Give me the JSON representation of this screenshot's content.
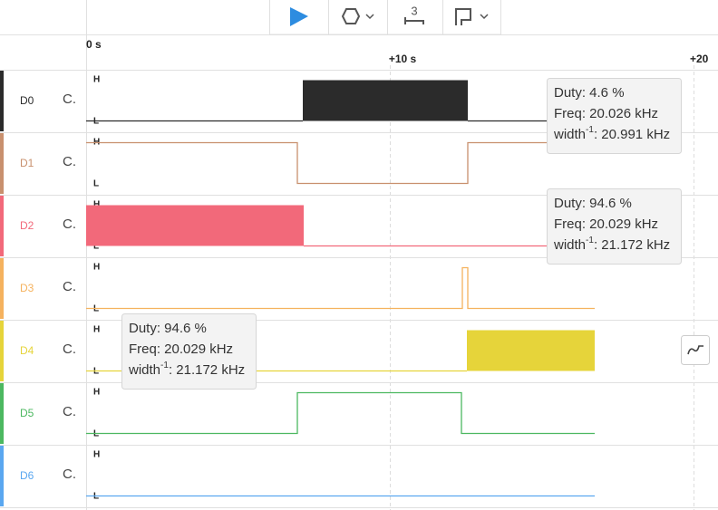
{
  "toolbar": {
    "count": "3"
  },
  "timeline": {
    "ticks": [
      "0 s",
      "+10 s",
      "+20"
    ]
  },
  "channels": [
    {
      "name": "D0",
      "label": "C.",
      "high": "H",
      "low": "L",
      "color": "#2b2b2b"
    },
    {
      "name": "D1",
      "label": "C.",
      "high": "H",
      "low": "L",
      "color": "#c8906e"
    },
    {
      "name": "D2",
      "label": "C.",
      "high": "H",
      "low": "L",
      "color": "#f2697a"
    },
    {
      "name": "D3",
      "label": "C.",
      "high": "H",
      "low": "L",
      "color": "#f5b25e"
    },
    {
      "name": "D4",
      "label": "C.",
      "high": "H",
      "low": "L",
      "color": "#e6d43a"
    },
    {
      "name": "D5",
      "label": "C.",
      "high": "H",
      "low": "L",
      "color": "#4cb860"
    },
    {
      "name": "D6",
      "label": "C.",
      "high": "H",
      "low": "L",
      "color": "#5aa7f0"
    }
  ],
  "tooltips": [
    {
      "duty": "Duty: 4.6 %",
      "freq": "Freq: 20.026 kHz",
      "width": "width",
      "exp": "-1",
      "value": ": 20.991 kHz"
    },
    {
      "duty": "Duty: 94.6 %",
      "freq": "Freq: 20.029 kHz",
      "width": "width",
      "exp": "-1",
      "value": ": 21.172 kHz"
    },
    {
      "duty": "Duty: 94.6 %",
      "freq": "Freq: 20.029 kHz",
      "width": "width",
      "exp": "-1",
      "value": ": 21.172 kHz"
    }
  ]
}
